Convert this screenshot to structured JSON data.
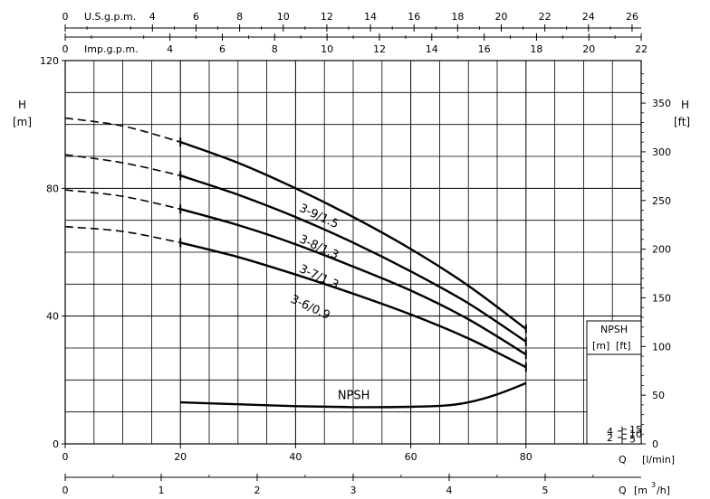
{
  "chart_data": {
    "type": "line",
    "x_unit": "Q [l/min]",
    "xlim": [
      0,
      100
    ],
    "x_ticks": [
      0,
      20,
      40,
      60,
      80
    ],
    "x_tick_labels": [
      "0",
      "20",
      "40",
      "60",
      "80"
    ],
    "x_label_parts": {
      "q": "Q",
      "unit_left": "[l/min]"
    },
    "x2_axis": {
      "unit": "m3/h",
      "label_q": "Q",
      "label_open": "[m",
      "label_sup": "3",
      "label_close": "/h]",
      "ticks": [
        0,
        1,
        2,
        3,
        4,
        5
      ],
      "tick_labels": [
        "0",
        "1",
        "2",
        "3",
        "4",
        "5"
      ]
    },
    "top_axis_usgpm": {
      "label": "U.S.g.p.m.",
      "ticks": [
        0,
        4,
        6,
        8,
        10,
        12,
        14,
        16,
        18,
        20,
        22,
        24,
        26
      ],
      "tick_labels": [
        "0",
        "4",
        "6",
        "8",
        "10",
        "12",
        "14",
        "16",
        "18",
        "20",
        "22",
        "24",
        "26"
      ]
    },
    "top_axis_impgpm": {
      "label": "Imp.g.p.m.",
      "ticks": [
        0,
        4,
        6,
        8,
        10,
        12,
        14,
        16,
        18,
        20,
        22
      ],
      "tick_labels": [
        "0",
        "4",
        "6",
        "8",
        "10",
        "12",
        "14",
        "16",
        "18",
        "20",
        "22"
      ]
    },
    "y_axis": {
      "label": "H",
      "unit": "[m]",
      "ylim": [
        0,
        120
      ],
      "ticks": [
        0,
        40,
        80,
        120
      ],
      "tick_labels": [
        "0",
        "40",
        "80",
        "120"
      ]
    },
    "y2_axis": {
      "label": "H",
      "unit": "[ft]",
      "ticks": [
        0,
        50,
        100,
        150,
        200,
        250,
        300,
        350
      ],
      "tick_labels": [
        "0",
        "50",
        "100",
        "150",
        "200",
        "250",
        "300",
        "350"
      ]
    },
    "grid": true,
    "series": [
      {
        "name": "3-9/1.5",
        "dashed_points": [
          [
            0,
            102
          ],
          [
            10,
            99.5
          ],
          [
            20,
            94.5
          ]
        ],
        "points": [
          [
            20,
            94.5
          ],
          [
            30,
            88
          ],
          [
            40,
            80
          ],
          [
            50,
            71
          ],
          [
            60,
            61
          ],
          [
            70,
            49.5
          ],
          [
            80,
            36
          ]
        ]
      },
      {
        "name": "3-8/1.3",
        "dashed_points": [
          [
            0,
            90.5
          ],
          [
            10,
            88
          ],
          [
            20,
            84
          ]
        ],
        "points": [
          [
            20,
            84
          ],
          [
            30,
            78
          ],
          [
            40,
            71
          ],
          [
            50,
            63
          ],
          [
            60,
            54
          ],
          [
            70,
            44
          ],
          [
            80,
            32
          ]
        ]
      },
      {
        "name": "3-7/1.3",
        "dashed_points": [
          [
            0,
            79.5
          ],
          [
            10,
            77.5
          ],
          [
            20,
            73.5
          ]
        ],
        "points": [
          [
            20,
            73.5
          ],
          [
            30,
            68.5
          ],
          [
            40,
            62.5
          ],
          [
            50,
            55.5
          ],
          [
            60,
            48
          ],
          [
            70,
            39
          ],
          [
            80,
            28
          ]
        ]
      },
      {
        "name": "3-6/0.9",
        "dashed_points": [
          [
            0,
            68
          ],
          [
            10,
            66.5
          ],
          [
            20,
            63
          ]
        ],
        "points": [
          [
            20,
            63
          ],
          [
            30,
            58.5
          ],
          [
            40,
            53
          ],
          [
            50,
            47
          ],
          [
            60,
            40.5
          ],
          [
            70,
            33
          ],
          [
            80,
            24
          ]
        ]
      },
      {
        "name": "NPSH",
        "points": [
          [
            20,
            13
          ],
          [
            30,
            12.4
          ],
          [
            40,
            11.8
          ],
          [
            50,
            11.5
          ],
          [
            60,
            11.6
          ],
          [
            66,
            12
          ],
          [
            70,
            13
          ],
          [
            75,
            15.5
          ],
          [
            80,
            19
          ]
        ]
      }
    ],
    "npsh_inset": {
      "title": "NPSH",
      "unit_m": "[m]",
      "unit_ft": "[ft]",
      "m_ticks": [
        2,
        4
      ],
      "m_tick_labels": [
        "2",
        "4"
      ],
      "ft_ticks": [
        5,
        10,
        15
      ],
      "ft_tick_labels": [
        "5",
        "10",
        "15"
      ]
    }
  }
}
